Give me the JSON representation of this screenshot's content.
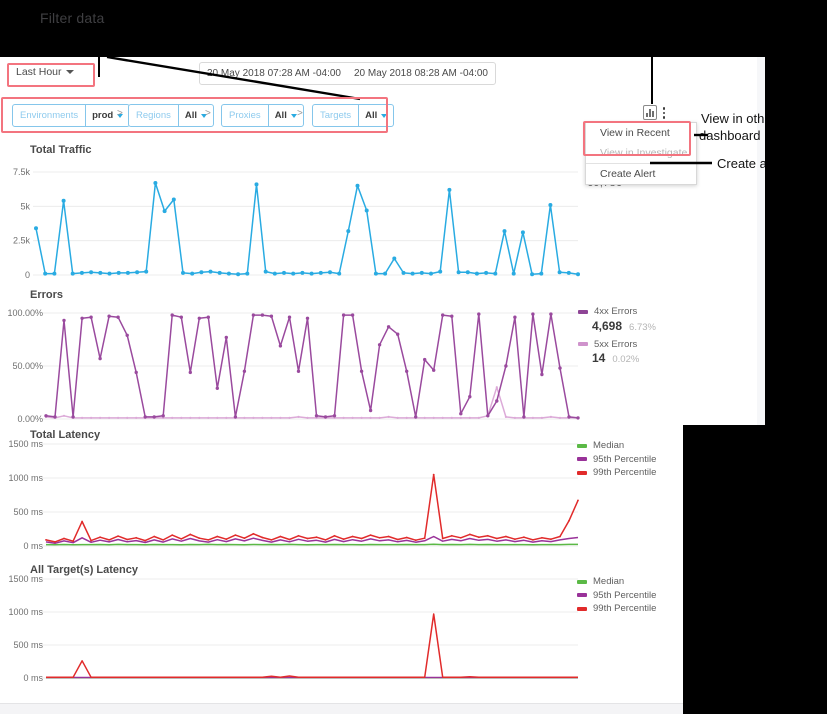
{
  "annotations": {
    "filter_data": "Filter data",
    "view_other_line1": "View in oth",
    "view_other_line2": "dashboard",
    "create_alert": "Create a"
  },
  "toolbar": {
    "time_range_label": "Last Hour",
    "start_date": "20 May 2018 07:28 AM -04:00",
    "end_date": "20 May 2018 08:28 AM -04:00"
  },
  "filters": {
    "separator": ">",
    "items": [
      {
        "label": "Environments",
        "value": "prod"
      },
      {
        "label": "Regions",
        "value": "All"
      },
      {
        "label": "Proxies",
        "value": "All"
      },
      {
        "label": "Targets",
        "value": "All"
      }
    ]
  },
  "menu": {
    "items": [
      {
        "label": "View in Recent"
      },
      {
        "label": "View in Investigate"
      },
      {
        "label": "Create Alert"
      }
    ]
  },
  "totals": {
    "total_traffic": "69,786"
  },
  "error_legend": {
    "items": [
      {
        "label": "4xx Errors",
        "value": "4,698",
        "pct": "6.73%",
        "color": "#8e4596"
      },
      {
        "label": "5xx Errors",
        "value": "14",
        "pct": "0.02%",
        "color": "#cf93cc"
      }
    ]
  },
  "latency_legend": {
    "items": [
      {
        "label": "Median",
        "color": "#5bb946"
      },
      {
        "label": "95th Percentile",
        "color": "#993299"
      },
      {
        "label": "99th Percentile",
        "color": "#e12b2b"
      }
    ]
  },
  "chart_data": [
    {
      "id": "total_traffic",
      "type": "line",
      "title": "Total Traffic",
      "yticks": [
        "7.5k",
        "5k",
        "2.5k",
        "0"
      ],
      "ylim": [
        0,
        7500
      ],
      "grid": true,
      "series": [
        {
          "name": "Traffic",
          "color": "#29abe2",
          "marker_radius": 2,
          "values": [
            3400,
            100,
            100,
            5400,
            100,
            150,
            200,
            150,
            100,
            150,
            150,
            200,
            250,
            6700,
            4650,
            5500,
            150,
            100,
            200,
            250,
            150,
            100,
            50,
            100,
            6600,
            250,
            100,
            150,
            100,
            150,
            100,
            150,
            200,
            100,
            3200,
            6500,
            4700,
            100,
            100,
            1200,
            150,
            100,
            150,
            100,
            250,
            6200,
            200,
            200,
            100,
            150,
            100,
            3200,
            100,
            3100,
            50,
            100,
            5100,
            200,
            150,
            50
          ]
        }
      ]
    },
    {
      "id": "errors",
      "type": "line",
      "title": "Errors",
      "yticks": [
        "100.00%",
        "50.00%",
        "0.00%"
      ],
      "ylim": [
        0,
        100
      ],
      "grid": true,
      "series": [
        {
          "name": "5xx Errors",
          "color": "#dcaad8",
          "marker_radius": 1.1,
          "values": [
            2,
            1,
            3,
            1,
            1,
            1,
            1,
            1,
            1,
            1,
            1,
            1,
            1,
            1,
            1,
            1,
            1,
            1,
            1,
            1,
            1,
            1,
            1,
            1,
            1,
            1,
            1,
            1,
            2,
            1,
            1,
            1,
            1,
            1,
            1,
            1,
            1,
            1,
            2,
            1,
            1,
            1,
            1,
            1,
            1,
            1,
            1,
            1,
            1,
            3,
            30,
            2,
            1,
            1,
            1,
            1,
            2,
            1,
            1,
            1
          ]
        },
        {
          "name": "4xx Errors",
          "color": "#9a4a9e",
          "marker_radius": 1.7,
          "values": [
            3,
            2,
            93,
            2,
            95,
            96,
            57,
            97,
            96,
            79,
            44,
            2,
            2,
            3,
            98,
            96,
            44,
            95,
            96,
            29,
            77,
            2,
            45,
            98,
            98,
            97,
            69,
            96,
            45,
            95,
            3,
            2,
            3,
            98,
            98,
            45,
            8,
            70,
            87,
            80,
            45,
            2,
            56,
            46,
            98,
            97,
            5,
            21,
            99,
            3,
            17,
            50,
            96,
            2,
            99,
            42,
            99,
            48,
            2,
            1
          ]
        }
      ]
    },
    {
      "id": "total_latency",
      "type": "line",
      "title": "Total Latency",
      "yticks": [
        "1500 ms",
        "1000 ms",
        "500 ms",
        "0 ms"
      ],
      "ylim": [
        0,
        1500
      ],
      "grid": true,
      "series": [
        {
          "name": "Median",
          "color": "#5bb946",
          "marker_radius": 0,
          "values": [
            20,
            18,
            22,
            19,
            21,
            20,
            22,
            19,
            23,
            20,
            21,
            19,
            22,
            20,
            21,
            19,
            22,
            20,
            23,
            21,
            22,
            20,
            19,
            22,
            20,
            22,
            21,
            23,
            21,
            19,
            21,
            20,
            22,
            21,
            21,
            19,
            22,
            20,
            21,
            21,
            22,
            21,
            21,
            25,
            21,
            22,
            21,
            23,
            21,
            22,
            21,
            21,
            20,
            21,
            19,
            21,
            20,
            21,
            23,
            24
          ]
        },
        {
          "name": "95th Percentile",
          "color": "#993299",
          "marker_radius": 0,
          "values": [
            60,
            40,
            75,
            48,
            120,
            55,
            85,
            60,
            95,
            62,
            80,
            52,
            90,
            58,
            105,
            70,
            110,
            75,
            58,
            92,
            64,
            105,
            75,
            115,
            82,
            58,
            90,
            62,
            98,
            71,
            84,
            58,
            97,
            64,
            92,
            71,
            104,
            77,
            90,
            62,
            82,
            56,
            76,
            140,
            71,
            97,
            77,
            110,
            84,
            97,
            71,
            90,
            64,
            84,
            58,
            77,
            64,
            90,
            110,
            125
          ]
        },
        {
          "name": "99th Percentile",
          "color": "#e12b2b",
          "marker_radius": 0.9,
          "values": [
            90,
            60,
            110,
            70,
            360,
            80,
            130,
            90,
            145,
            95,
            120,
            80,
            140,
            90,
            160,
            105,
            170,
            115,
            90,
            140,
            100,
            160,
            115,
            180,
            125,
            90,
            140,
            95,
            150,
            110,
            130,
            90,
            150,
            100,
            140,
            110,
            160,
            120,
            140,
            95,
            125,
            85,
            115,
            1050,
            110,
            150,
            120,
            170,
            130,
            150,
            110,
            140,
            100,
            130,
            90,
            120,
            100,
            140,
            370,
            670
          ]
        }
      ]
    },
    {
      "id": "all_targets_latency",
      "type": "line",
      "title": "All Target(s) Latency",
      "yticks": [
        "1500 ms",
        "1000 ms",
        "500 ms",
        "0 ms"
      ],
      "ylim": [
        0,
        1500
      ],
      "grid": true,
      "series": [
        {
          "name": "Median",
          "color": "#5bb946",
          "marker_radius": 0,
          "values": [
            5,
            5,
            5,
            5,
            5,
            5,
            5,
            5,
            5,
            5,
            5,
            5,
            5,
            5,
            5,
            5,
            5,
            5,
            5,
            5,
            5,
            5,
            5,
            5,
            5,
            5,
            5,
            5,
            5,
            5,
            5,
            5,
            5,
            5,
            5,
            5,
            5,
            5,
            5,
            5,
            5,
            5,
            5,
            5,
            5,
            5,
            5,
            5,
            5,
            5,
            5,
            5,
            5,
            5,
            5,
            5,
            5,
            5,
            5,
            5
          ]
        },
        {
          "name": "95th Percentile",
          "color": "#993299",
          "marker_radius": 0,
          "values": [
            8,
            8,
            8,
            8,
            8,
            8,
            8,
            8,
            8,
            8,
            8,
            8,
            8,
            8,
            8,
            8,
            8,
            8,
            8,
            8,
            8,
            8,
            8,
            8,
            8,
            8,
            8,
            8,
            8,
            8,
            8,
            8,
            8,
            8,
            8,
            8,
            8,
            8,
            8,
            8,
            8,
            8,
            8,
            8,
            8,
            8,
            8,
            8,
            8,
            8,
            8,
            8,
            8,
            8,
            8,
            8,
            8,
            8,
            8,
            8
          ]
        },
        {
          "name": "99th Percentile",
          "color": "#e12b2b",
          "marker_radius": 0,
          "values": [
            10,
            10,
            10,
            10,
            260,
            10,
            10,
            10,
            10,
            10,
            10,
            10,
            10,
            10,
            10,
            10,
            10,
            10,
            10,
            10,
            10,
            10,
            10,
            10,
            10,
            25,
            10,
            30,
            10,
            10,
            10,
            10,
            10,
            10,
            10,
            10,
            10,
            10,
            10,
            10,
            10,
            10,
            10,
            970,
            10,
            10,
            10,
            20,
            10,
            10,
            10,
            10,
            10,
            10,
            10,
            10,
            10,
            10,
            10,
            10
          ]
        }
      ]
    }
  ]
}
